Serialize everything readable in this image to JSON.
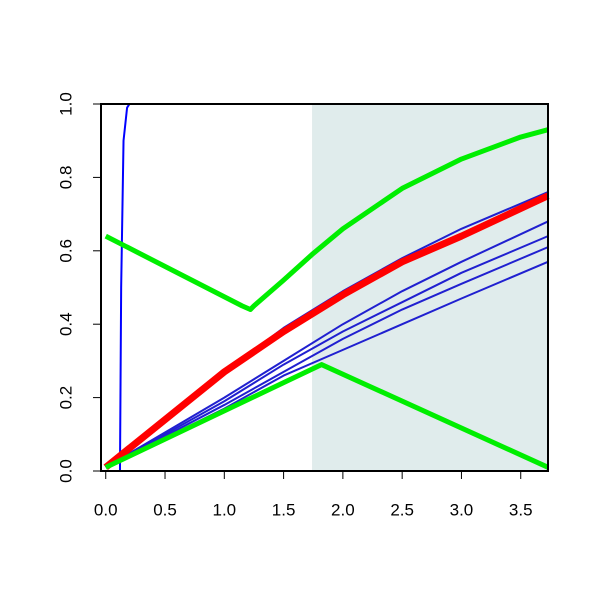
{
  "chart_data": {
    "type": "line",
    "xlim": [
      -0.04,
      3.73
    ],
    "ylim": [
      0,
      1
    ],
    "xticks": [
      {
        "value": 0,
        "label": "0.0"
      },
      0.5,
      {
        "value": 1,
        "label": "1.0"
      },
      1.5,
      {
        "value": 2,
        "label": "2.0"
      },
      2.5,
      {
        "value": 3,
        "label": "3.0"
      },
      3.5
    ],
    "yticks": [
      {
        "value": 0,
        "label": "0.0"
      },
      0.2,
      0.4,
      0.6,
      0.8,
      {
        "value": 1,
        "label": "1.0"
      }
    ],
    "shaded_region": {
      "x": [
        1.74,
        3.73
      ],
      "color": "#e0ecec"
    },
    "series": [
      {
        "color": "#0000ff",
        "width": 2,
        "x": [
          0.12,
          0.13,
          0.15,
          0.18,
          0.2,
          3.73
        ],
        "values": [
          0,
          0.5,
          0.9,
          0.99,
          1.0,
          1.0
        ]
      },
      {
        "color": "#2020d0",
        "width": 2,
        "x": [
          0,
          1,
          1.5,
          2,
          2.5,
          3,
          3.73
        ],
        "values": [
          0.01,
          0.27,
          0.39,
          0.49,
          0.58,
          0.66,
          0.76
        ]
      },
      {
        "color": "#2020d0",
        "width": 2,
        "x": [
          0,
          1,
          1.5,
          2,
          2.5,
          3,
          3.73
        ],
        "values": [
          0.01,
          0.2,
          0.3,
          0.4,
          0.49,
          0.57,
          0.68
        ]
      },
      {
        "color": "#2020d0",
        "width": 2,
        "x": [
          0,
          1,
          1.5,
          2,
          2.5,
          3,
          3.73
        ],
        "values": [
          0.01,
          0.19,
          0.29,
          0.38,
          0.46,
          0.54,
          0.64
        ]
      },
      {
        "color": "#2020d0",
        "width": 2,
        "x": [
          0,
          1,
          1.5,
          2,
          2.5,
          3,
          3.73
        ],
        "values": [
          0.01,
          0.18,
          0.27,
          0.36,
          0.44,
          0.51,
          0.61
        ]
      },
      {
        "color": "#2020d0",
        "width": 2,
        "x": [
          0,
          1,
          1.5,
          2,
          2.5,
          3,
          3.73
        ],
        "values": [
          0.01,
          0.17,
          0.26,
          0.33,
          0.4,
          0.47,
          0.57
        ]
      },
      {
        "color": "#ff0000",
        "width": 7,
        "x": [
          0,
          1,
          1.5,
          2,
          2.5,
          3,
          3.73
        ],
        "values": [
          0.01,
          0.27,
          0.38,
          0.48,
          0.57,
          0.64,
          0.75
        ]
      },
      {
        "color": "#00ee00",
        "width": 5,
        "x": [
          0,
          1.15,
          1.22,
          1.25,
          1.5,
          1.74,
          2,
          2.5,
          3,
          3.5,
          3.73
        ],
        "values": [
          0.64,
          0.45,
          0.44,
          0.45,
          0.52,
          0.59,
          0.66,
          0.77,
          0.85,
          0.91,
          0.93
        ]
      },
      {
        "color": "#00ee00",
        "width": 5,
        "x": [
          0,
          1.82,
          3.73
        ],
        "values": [
          0.01,
          0.29,
          0.01
        ]
      }
    ]
  }
}
